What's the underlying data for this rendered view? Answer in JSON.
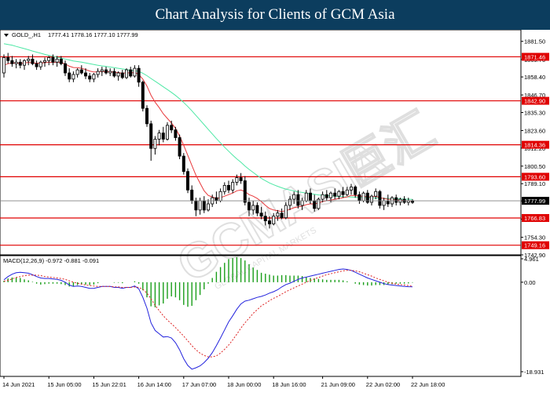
{
  "page": {
    "title": "Chart Analysis for Clients of GCM Asia"
  },
  "symbol_header": {
    "symbol": "GOLD_,H1",
    "ohlc": "1777.41 1778.16 1777.10 1777.99"
  },
  "watermark": {
    "brand": "GCMASIA",
    "chinese": "巨汇",
    "tagline": "GLOBAL CAPITAL MARKETS"
  },
  "colors": {
    "bull_candle": "#000000",
    "bear_candle": "#000000",
    "ma_fast": "#e8383b",
    "ma_slow": "#4ee8a5",
    "level_line": "#e00000",
    "current_price_bg": "#000000",
    "macd_hist": "#1a9e1a",
    "macd_line": "#2222dd",
    "signal_line": "#dd2222"
  },
  "chart_data": [
    {
      "type": "candlestick",
      "symbol": "GOLD_,H1",
      "ylim": [
        1742.9,
        1889
      ],
      "y_ticks": [
        1881.5,
        1869.7,
        1858.4,
        1846.7,
        1835.3,
        1823.6,
        1812.2,
        1800.5,
        1789.1,
        1777.9,
        1766.1,
        1754.3,
        1742.9
      ],
      "y_tick_labels": [
        "1881.50",
        "1869.70",
        "1858.40",
        "1846.70",
        "1835.30",
        "1823.60",
        "1812.20",
        "1800.50",
        "1789.10",
        "1777.90",
        "1766.10",
        "1754.30",
        "1742.90"
      ],
      "x_labels": [
        "14 Jun 2021",
        "15 Jun 05:00",
        "15 Jun 22:01",
        "16 Jun 14:00",
        "17 Jun 07:00",
        "18 Jun 00:00",
        "18 Jun 16:00",
        "21 Jun 09:00",
        "22 Jun 02:00",
        "22 Jun 18:00"
      ],
      "x_label_index": [
        0,
        11,
        22,
        33,
        44,
        55,
        66,
        78,
        89,
        100
      ],
      "candles": [
        [
          1861.0,
          1873.0,
          1858.0,
          1871.0
        ],
        [
          1871.0,
          1874.0,
          1867.0,
          1869.0
        ],
        [
          1869.0,
          1872.0,
          1865.0,
          1867.0
        ],
        [
          1867.0,
          1870.0,
          1864.0,
          1868.0
        ],
        [
          1868.0,
          1870.0,
          1864.0,
          1866.0
        ],
        [
          1866.0,
          1870.0,
          1863.0,
          1869.0
        ],
        [
          1869.0,
          1872.0,
          1866.0,
          1870.0
        ],
        [
          1870.0,
          1873.0,
          1866.0,
          1867.0
        ],
        [
          1867.0,
          1869.0,
          1863.0,
          1865.0
        ],
        [
          1865.0,
          1869.0,
          1863.0,
          1868.0
        ],
        [
          1868.0,
          1871.0,
          1865.0,
          1869.0
        ],
        [
          1869.0,
          1872.0,
          1866.0,
          1871.0
        ],
        [
          1871.0,
          1873.0,
          1866.0,
          1868.0
        ],
        [
          1868.0,
          1872.0,
          1865.0,
          1870.0
        ],
        [
          1870.0,
          1872.0,
          1866.0,
          1867.0
        ],
        [
          1867.0,
          1869.0,
          1859.0,
          1861.0
        ],
        [
          1861.0,
          1864.0,
          1855.0,
          1857.0
        ],
        [
          1857.0,
          1862.0,
          1855.0,
          1860.0
        ],
        [
          1860.0,
          1864.0,
          1858.0,
          1863.0
        ],
        [
          1863.0,
          1866.0,
          1860.0,
          1861.0
        ],
        [
          1861.0,
          1864.0,
          1857.0,
          1859.0
        ],
        [
          1859.0,
          1861.0,
          1855.0,
          1857.0
        ],
        [
          1857.0,
          1861.0,
          1855.0,
          1860.0
        ],
        [
          1860.0,
          1864.0,
          1858.0,
          1862.0
        ],
        [
          1862.0,
          1865.0,
          1859.0,
          1863.0
        ],
        [
          1863.0,
          1865.0,
          1860.0,
          1861.0
        ],
        [
          1861.0,
          1864.0,
          1859.0,
          1862.0
        ],
        [
          1862.0,
          1864.0,
          1858.0,
          1859.0
        ],
        [
          1859.0,
          1862.0,
          1856.0,
          1861.0
        ],
        [
          1861.0,
          1863.0,
          1857.0,
          1858.0
        ],
        [
          1858.0,
          1864.0,
          1857.0,
          1863.0
        ],
        [
          1863.0,
          1865.0,
          1858.0,
          1859.0
        ],
        [
          1859.0,
          1866.0,
          1858.0,
          1864.0
        ],
        [
          1864.0,
          1866.0,
          1852.0,
          1855.0
        ],
        [
          1855.0,
          1856.0,
          1836.0,
          1838.0
        ],
        [
          1838.0,
          1840.0,
          1826.0,
          1828.0
        ],
        [
          1828.0,
          1830.0,
          1804.0,
          1812.0
        ],
        [
          1812.0,
          1820.0,
          1808.0,
          1818.0
        ],
        [
          1818.0,
          1824.0,
          1814.0,
          1822.0
        ],
        [
          1822.0,
          1826.0,
          1816.0,
          1818.0
        ],
        [
          1818.0,
          1829.0,
          1817.0,
          1827.0
        ],
        [
          1827.0,
          1830.0,
          1822.0,
          1824.0
        ],
        [
          1824.0,
          1826.0,
          1817.0,
          1819.0
        ],
        [
          1819.0,
          1821.0,
          1805.0,
          1807.0
        ],
        [
          1807.0,
          1809.0,
          1795.0,
          1797.0
        ],
        [
          1797.0,
          1799.0,
          1783.0,
          1785.0
        ],
        [
          1785.0,
          1788.0,
          1776.0,
          1778.0
        ],
        [
          1778.0,
          1780.0,
          1768.0,
          1772.0
        ],
        [
          1772.0,
          1780.0,
          1769.0,
          1778.0
        ],
        [
          1778.0,
          1781.0,
          1770.0,
          1772.0
        ],
        [
          1772.0,
          1779.0,
          1771.0,
          1776.0
        ],
        [
          1776.0,
          1782.0,
          1774.0,
          1780.0
        ],
        [
          1780.0,
          1784.0,
          1776.0,
          1778.0
        ],
        [
          1778.0,
          1786.0,
          1777.0,
          1784.0
        ],
        [
          1784.0,
          1790.0,
          1782.0,
          1788.0
        ],
        [
          1788.0,
          1791.0,
          1783.0,
          1785.0
        ],
        [
          1785.0,
          1792.0,
          1783.0,
          1790.0
        ],
        [
          1790.0,
          1795.0,
          1788.0,
          1793.0
        ],
        [
          1793.0,
          1796.0,
          1789.0,
          1791.0
        ],
        [
          1791.0,
          1794.0,
          1775.0,
          1777.0
        ],
        [
          1777.0,
          1780.0,
          1768.0,
          1772.0
        ],
        [
          1772.0,
          1778.0,
          1769.0,
          1775.0
        ],
        [
          1775.0,
          1777.0,
          1768.0,
          1770.0
        ],
        [
          1770.0,
          1774.0,
          1766.0,
          1768.0
        ],
        [
          1768.0,
          1771.0,
          1762.0,
          1765.0
        ],
        [
          1765.0,
          1768.0,
          1760.0,
          1763.0
        ],
        [
          1763.0,
          1770.0,
          1762.0,
          1768.0
        ],
        [
          1768.0,
          1772.0,
          1765.0,
          1770.0
        ],
        [
          1770.0,
          1773.0,
          1766.0,
          1767.0
        ],
        [
          1767.0,
          1777.0,
          1766.0,
          1775.0
        ],
        [
          1775.0,
          1781.0,
          1772.0,
          1779.0
        ],
        [
          1779.0,
          1784.0,
          1776.0,
          1782.0
        ],
        [
          1782.0,
          1785.0,
          1773.0,
          1775.0
        ],
        [
          1775.0,
          1780.0,
          1772.0,
          1778.0
        ],
        [
          1778.0,
          1785.0,
          1777.0,
          1783.0
        ],
        [
          1783.0,
          1786.0,
          1776.0,
          1778.0
        ],
        [
          1778.0,
          1782.0,
          1771.0,
          1773.0
        ],
        [
          1773.0,
          1780.0,
          1772.0,
          1779.0
        ],
        [
          1779.0,
          1784.0,
          1777.0,
          1782.0
        ],
        [
          1782.0,
          1785.0,
          1778.0,
          1780.0
        ],
        [
          1780.0,
          1784.0,
          1777.0,
          1783.0
        ],
        [
          1783.0,
          1786.0,
          1779.0,
          1781.0
        ],
        [
          1781.0,
          1785.0,
          1779.0,
          1784.0
        ],
        [
          1784.0,
          1787.0,
          1780.0,
          1782.0
        ],
        [
          1782.0,
          1787.0,
          1781.0,
          1785.0
        ],
        [
          1785.0,
          1789.0,
          1782.0,
          1787.0
        ],
        [
          1787.0,
          1788.0,
          1780.0,
          1782.0
        ],
        [
          1782.0,
          1784.0,
          1776.0,
          1778.0
        ],
        [
          1778.0,
          1784.0,
          1777.0,
          1783.0
        ],
        [
          1783.0,
          1785.0,
          1776.0,
          1777.0
        ],
        [
          1777.0,
          1782.0,
          1775.0,
          1781.0
        ],
        [
          1781.0,
          1786.0,
          1779.0,
          1784.0
        ],
        [
          1784.0,
          1785.0,
          1773.0,
          1775.0
        ],
        [
          1775.0,
          1780.0,
          1772.0,
          1778.0
        ],
        [
          1778.0,
          1782.0,
          1774.0,
          1776.0
        ],
        [
          1776.0,
          1781.0,
          1774.0,
          1780.0
        ],
        [
          1780.0,
          1782.0,
          1775.0,
          1777.0
        ],
        [
          1777.0,
          1780.0,
          1775.0,
          1779.0
        ],
        [
          1779.0,
          1781.0,
          1776.0,
          1777.0
        ],
        [
          1777.0,
          1780.0,
          1775.0,
          1778.0
        ],
        [
          1778.0,
          1779.0,
          1776.0,
          1777.0
        ]
      ],
      "ma_fast": [
        1866.0,
        1867.0,
        1867.5,
        1867.4,
        1867.2,
        1867.5,
        1867.8,
        1867.6,
        1867.3,
        1867.4,
        1867.6,
        1867.9,
        1867.8,
        1868.0,
        1867.8,
        1866.8,
        1865.4,
        1864.5,
        1864.4,
        1864.0,
        1863.2,
        1862.2,
        1861.6,
        1861.7,
        1861.9,
        1861.8,
        1861.9,
        1861.4,
        1861.3,
        1860.7,
        1861.2,
        1860.9,
        1861.4,
        1860.0,
        1857.0,
        1852.5,
        1846.5,
        1842.0,
        1838.5,
        1834.5,
        1831.5,
        1828.5,
        1825.0,
        1820.0,
        1814.0,
        1807.5,
        1801.0,
        1794.5,
        1789.5,
        1784.5,
        1781.5,
        1780.5,
        1779.5,
        1780.0,
        1781.0,
        1782.0,
        1783.0,
        1784.5,
        1785.0,
        1784.0,
        1782.0,
        1781.0,
        1779.5,
        1777.5,
        1775.0,
        1773.0,
        1772.0,
        1771.5,
        1771.0,
        1771.5,
        1772.5,
        1773.5,
        1774.0,
        1774.5,
        1775.5,
        1776.0,
        1776.0,
        1776.5,
        1777.5,
        1778.0,
        1778.5,
        1779.0,
        1779.5,
        1780.0,
        1780.5,
        1781.5,
        1781.5,
        1781.0,
        1781.0,
        1780.5,
        1780.5,
        1781.0,
        1780.0,
        1779.5,
        1779.0,
        1779.0,
        1778.5,
        1778.5,
        1778.0,
        1778.0,
        1777.8
      ],
      "ma_slow": [
        1880.0,
        1879.5,
        1879.0,
        1878.2,
        1877.5,
        1876.8,
        1876.0,
        1875.2,
        1874.5,
        1873.8,
        1873.0,
        1872.4,
        1871.8,
        1871.2,
        1870.6,
        1870.0,
        1869.4,
        1868.8,
        1868.4,
        1868.0,
        1867.5,
        1867.0,
        1866.5,
        1866.0,
        1865.6,
        1865.2,
        1864.8,
        1864.4,
        1864.0,
        1863.6,
        1863.2,
        1862.8,
        1862.4,
        1862.0,
        1860.8,
        1859.2,
        1857.4,
        1855.6,
        1853.8,
        1852.0,
        1850.2,
        1848.4,
        1846.4,
        1844.2,
        1841.8,
        1839.2,
        1836.4,
        1833.4,
        1830.4,
        1827.4,
        1824.4,
        1821.4,
        1818.4,
        1815.6,
        1812.8,
        1810.2,
        1807.6,
        1805.2,
        1803.0,
        1800.6,
        1798.4,
        1796.4,
        1794.4,
        1792.6,
        1791.0,
        1789.6,
        1788.4,
        1787.4,
        1786.4,
        1785.6,
        1785.0,
        1784.4,
        1783.8,
        1783.4,
        1783.0,
        1782.6,
        1782.2,
        1781.8,
        1781.6,
        1781.4,
        1781.2,
        1781.0,
        1780.8,
        1780.6,
        1780.5,
        1780.4,
        1780.3,
        1780.2,
        1780.1,
        1780.0,
        1779.9,
        1779.8,
        1779.7,
        1779.6,
        1779.5,
        1779.4,
        1779.3,
        1779.2,
        1779.1,
        1779.0,
        1778.9
      ],
      "levels": [
        1871.46,
        1842.9,
        1814.36,
        1793.6,
        1766.83,
        1749.16
      ],
      "level_labels": [
        "1871.46",
        "1842.90",
        "1814.36",
        "1793.60",
        "1766.83",
        "1749.16"
      ],
      "current_price": 1777.99,
      "current_price_label": "1777.99"
    },
    {
      "type": "macd",
      "label": "MACD(12,26,9) -0.972 -0.881 -0.091",
      "ylim": [
        -18.931,
        4.961
      ],
      "y_ticks": [
        4.961,
        0.0,
        -18.931
      ],
      "y_tick_labels": [
        "4.961",
        "0.00",
        "-18.931"
      ],
      "macd": [
        0.5,
        1.2,
        1.7,
        2.0,
        2.1,
        2.0,
        1.9,
        1.6,
        1.2,
        0.9,
        0.8,
        0.8,
        0.7,
        0.6,
        0.4,
        0.0,
        -0.6,
        -0.9,
        -0.8,
        -0.9,
        -1.1,
        -1.3,
        -1.3,
        -1.1,
        -0.9,
        -0.9,
        -0.9,
        -1.1,
        -1.1,
        -1.3,
        -1.1,
        -1.1,
        -0.8,
        -1.4,
        -3.2,
        -5.5,
        -8.6,
        -10.2,
        -10.9,
        -11.6,
        -11.5,
        -11.8,
        -12.8,
        -14.3,
        -16.2,
        -17.6,
        -18.4,
        -18.1,
        -17.7,
        -17.0,
        -16.1,
        -14.9,
        -13.4,
        -11.8,
        -10.1,
        -8.4,
        -7.1,
        -5.7,
        -4.6,
        -4.0,
        -3.8,
        -3.5,
        -3.2,
        -3.0,
        -2.7,
        -2.3,
        -2.0,
        -1.6,
        -1.0,
        -0.5,
        -0.2,
        0.2,
        0.6,
        0.9,
        1.1,
        1.3,
        1.5,
        1.7,
        1.9,
        2.1,
        2.3,
        2.5,
        2.7,
        2.8,
        2.7,
        2.5,
        2.1,
        1.7,
        1.3,
        0.9,
        0.6,
        0.3,
        0.0,
        -0.3,
        -0.5,
        -0.6,
        -0.7,
        -0.8,
        -0.9,
        -0.95,
        -0.97
      ],
      "signal": [
        0.2,
        0.4,
        0.7,
        1.0,
        1.2,
        1.4,
        1.5,
        1.5,
        1.5,
        1.4,
        1.2,
        1.1,
        1.0,
        0.9,
        0.8,
        0.6,
        0.3,
        0.0,
        -0.2,
        -0.4,
        -0.6,
        -0.7,
        -0.8,
        -0.9,
        -0.9,
        -0.9,
        -0.9,
        -1.0,
        -1.0,
        -1.1,
        -1.1,
        -1.1,
        -1.0,
        -1.1,
        -1.5,
        -2.3,
        -3.5,
        -4.9,
        -6.0,
        -7.1,
        -8.0,
        -8.8,
        -9.6,
        -10.5,
        -11.4,
        -12.4,
        -13.4,
        -14.3,
        -15.0,
        -15.5,
        -15.8,
        -15.8,
        -15.6,
        -15.0,
        -14.2,
        -13.3,
        -12.2,
        -11.0,
        -9.7,
        -8.6,
        -7.6,
        -6.6,
        -5.8,
        -5.0,
        -4.5,
        -3.9,
        -3.4,
        -3.0,
        -2.5,
        -2.0,
        -1.6,
        -1.2,
        -0.8,
        -0.4,
        0.0,
        0.4,
        0.7,
        1.0,
        1.3,
        1.6,
        1.8,
        2.0,
        2.2,
        2.4,
        2.5,
        2.5,
        2.4,
        2.2,
        1.9,
        1.6,
        1.3,
        0.9,
        0.6,
        0.3,
        0.0,
        -0.2,
        -0.4,
        -0.5,
        -0.6,
        -0.7,
        -0.88
      ],
      "histogram": [
        0.3,
        0.8,
        1.0,
        1.0,
        0.9,
        0.6,
        0.4,
        0.1,
        -0.3,
        -0.5,
        -0.4,
        -0.3,
        -0.3,
        -0.3,
        -0.4,
        -0.6,
        -0.9,
        -0.9,
        -0.6,
        -0.5,
        -0.5,
        -0.6,
        -0.5,
        -0.2,
        0.0,
        0.0,
        0.0,
        -0.1,
        -0.1,
        -0.2,
        0.0,
        0.0,
        0.2,
        -0.3,
        -1.7,
        -3.2,
        -5.1,
        -5.3,
        -4.9,
        -4.5,
        -3.5,
        -3.0,
        -3.2,
        -3.8,
        -4.8,
        -5.2,
        -5.0,
        -3.8,
        -2.7,
        -1.5,
        -0.3,
        0.9,
        2.2,
        3.2,
        4.1,
        4.9,
        5.1,
        5.3,
        5.1,
        4.6,
        3.8,
        3.1,
        2.6,
        2.0,
        1.8,
        1.6,
        1.4,
        1.4,
        1.5,
        1.5,
        1.4,
        1.4,
        1.4,
        1.3,
        1.1,
        0.9,
        0.8,
        0.7,
        0.6,
        0.5,
        0.5,
        0.5,
        0.5,
        0.4,
        0.2,
        0.0,
        -0.3,
        -0.5,
        -0.6,
        -0.7,
        -0.7,
        -0.6,
        -0.6,
        -0.6,
        -0.5,
        -0.4,
        -0.3,
        -0.3,
        -0.3,
        -0.25,
        -0.09
      ]
    }
  ]
}
